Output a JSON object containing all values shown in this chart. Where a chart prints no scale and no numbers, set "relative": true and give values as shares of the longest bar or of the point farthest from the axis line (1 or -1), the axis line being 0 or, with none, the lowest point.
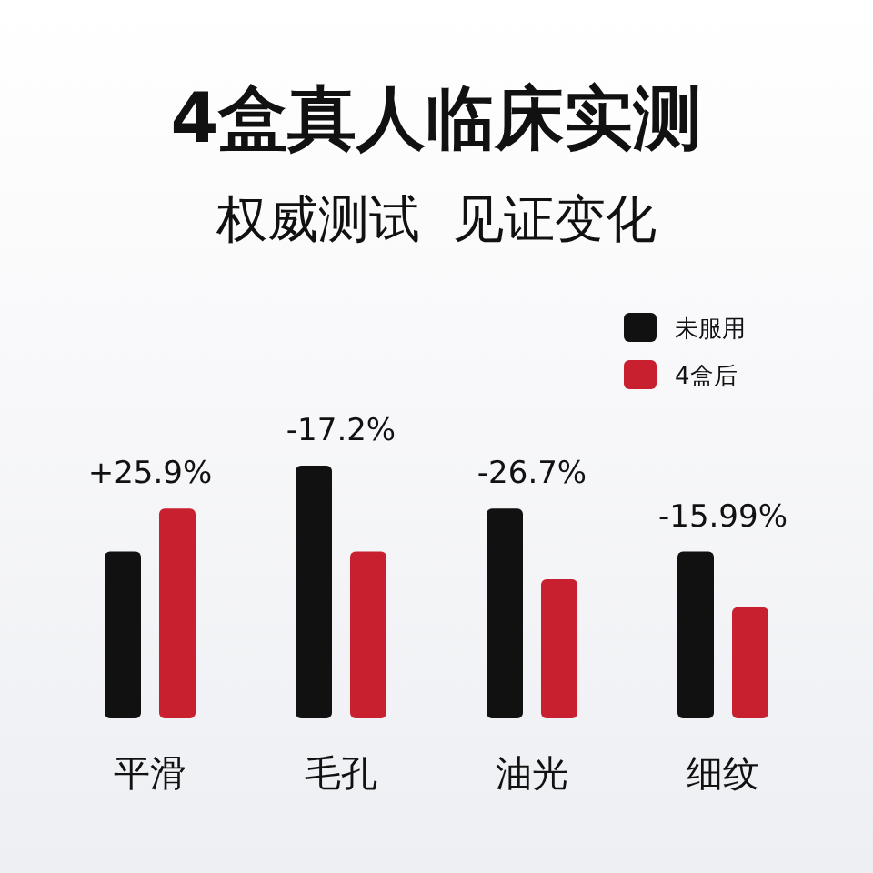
{
  "chart_data": {
    "type": "bar",
    "title": "4盒真人临床实测",
    "subtitle": "权威测试  见证变化",
    "relative": true,
    "categories": [
      "平滑",
      "毛孔",
      "油光",
      "细纹"
    ],
    "series": [
      {
        "name": "未服用",
        "color": "#111111",
        "values": [
          0.66,
          1,
          0.83,
          0.66
        ]
      },
      {
        "name": "4盒后",
        "color": "#c8202f",
        "values": [
          0.83,
          0.66,
          0.55,
          0.44
        ]
      }
    ],
    "annotations": [
      "+25.9%",
      "-17.2%",
      "-26.7%",
      "-15.99%"
    ],
    "legend": "top right"
  }
}
